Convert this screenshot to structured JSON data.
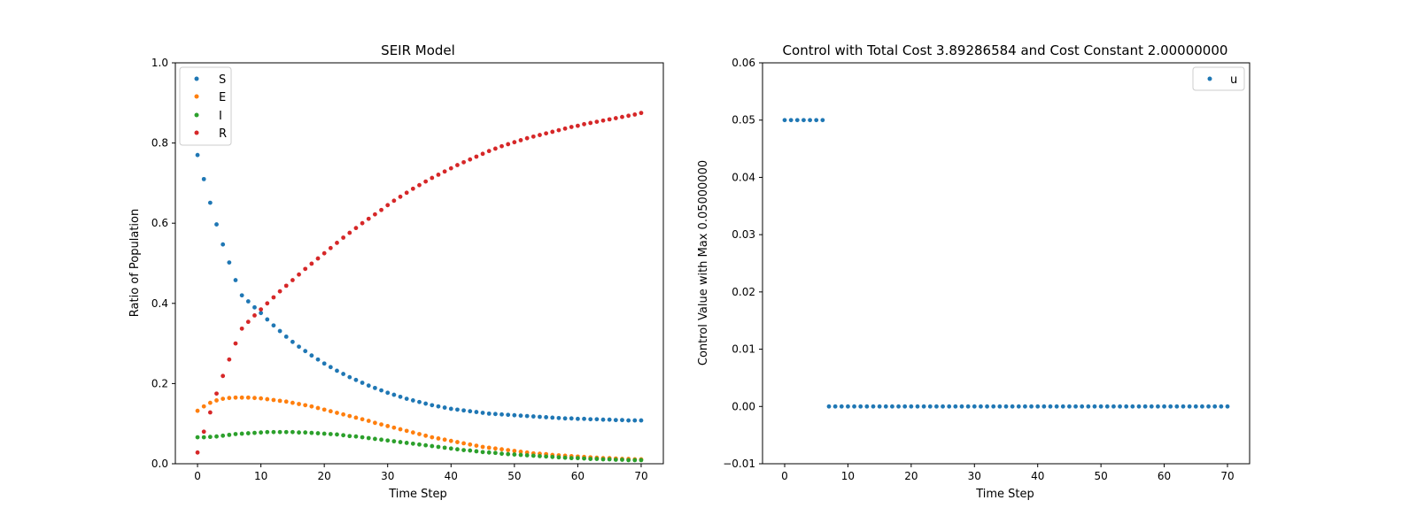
{
  "chart_data": [
    {
      "type": "scatter",
      "title": "SEIR Model",
      "xlabel": "Time Step",
      "ylabel": "Ratio of Population",
      "xlim": [
        -3.5,
        73.5
      ],
      "ylim": [
        0.0,
        1.0
      ],
      "xticks": [
        "0",
        "10",
        "20",
        "30",
        "40",
        "50",
        "60",
        "70"
      ],
      "yticks": [
        "0.0",
        "0.2",
        "0.4",
        "0.6",
        "0.8",
        "1.0"
      ],
      "grid": false,
      "legend": "top-left",
      "x": "0..70",
      "series": [
        {
          "name": "S",
          "color": "#1f77b4",
          "values": [
            0.77,
            0.71,
            0.651,
            0.597,
            0.547,
            0.502,
            0.458,
            0.42,
            0.405,
            0.39,
            0.376,
            0.36,
            0.345,
            0.331,
            0.317,
            0.304,
            0.292,
            0.281,
            0.27,
            0.26,
            0.25,
            0.241,
            0.232,
            0.224,
            0.216,
            0.209,
            0.202,
            0.195,
            0.189,
            0.183,
            0.177,
            0.172,
            0.167,
            0.162,
            0.158,
            0.154,
            0.15,
            0.146,
            0.143,
            0.14,
            0.137,
            0.135,
            0.133,
            0.131,
            0.129,
            0.127,
            0.125,
            0.124,
            0.123,
            0.122,
            0.121,
            0.12,
            0.119,
            0.118,
            0.117,
            0.116,
            0.115,
            0.114,
            0.113,
            0.113,
            0.112,
            0.112,
            0.111,
            0.111,
            0.11,
            0.11,
            0.109,
            0.109,
            0.108,
            0.108,
            0.108
          ]
        },
        {
          "name": "E",
          "color": "#ff7f0e",
          "values": [
            0.132,
            0.143,
            0.152,
            0.158,
            0.162,
            0.164,
            0.165,
            0.165,
            0.165,
            0.164,
            0.163,
            0.161,
            0.159,
            0.157,
            0.155,
            0.152,
            0.149,
            0.146,
            0.143,
            0.139,
            0.135,
            0.131,
            0.127,
            0.123,
            0.119,
            0.115,
            0.111,
            0.107,
            0.102,
            0.098,
            0.094,
            0.09,
            0.086,
            0.082,
            0.078,
            0.074,
            0.07,
            0.066,
            0.063,
            0.06,
            0.057,
            0.054,
            0.051,
            0.048,
            0.045,
            0.042,
            0.04,
            0.038,
            0.036,
            0.034,
            0.032,
            0.03,
            0.028,
            0.026,
            0.025,
            0.024,
            0.022,
            0.021,
            0.02,
            0.019,
            0.018,
            0.017,
            0.016,
            0.015,
            0.014,
            0.014,
            0.013,
            0.012,
            0.012,
            0.011,
            0.011
          ]
        },
        {
          "name": "I",
          "color": "#2ca02c",
          "values": [
            0.066,
            0.066,
            0.067,
            0.068,
            0.07,
            0.072,
            0.074,
            0.075,
            0.076,
            0.077,
            0.078,
            0.079,
            0.079,
            0.079,
            0.079,
            0.079,
            0.078,
            0.078,
            0.077,
            0.076,
            0.075,
            0.074,
            0.073,
            0.071,
            0.069,
            0.068,
            0.066,
            0.064,
            0.062,
            0.06,
            0.058,
            0.056,
            0.054,
            0.052,
            0.05,
            0.048,
            0.046,
            0.044,
            0.042,
            0.04,
            0.038,
            0.036,
            0.034,
            0.033,
            0.031,
            0.029,
            0.028,
            0.027,
            0.025,
            0.024,
            0.023,
            0.022,
            0.021,
            0.02,
            0.019,
            0.018,
            0.017,
            0.016,
            0.015,
            0.014,
            0.014,
            0.013,
            0.012,
            0.012,
            0.011,
            0.011,
            0.01,
            0.01,
            0.009,
            0.009,
            0.009
          ]
        },
        {
          "name": "R",
          "color": "#d62728",
          "values": [
            0.028,
            0.08,
            0.128,
            0.175,
            0.219,
            0.26,
            0.3,
            0.337,
            0.354,
            0.37,
            0.385,
            0.4,
            0.415,
            0.43,
            0.444,
            0.458,
            0.472,
            0.486,
            0.499,
            0.512,
            0.525,
            0.538,
            0.551,
            0.564,
            0.576,
            0.588,
            0.6,
            0.611,
            0.622,
            0.633,
            0.645,
            0.656,
            0.666,
            0.676,
            0.686,
            0.695,
            0.704,
            0.713,
            0.721,
            0.729,
            0.737,
            0.745,
            0.752,
            0.759,
            0.766,
            0.773,
            0.78,
            0.786,
            0.792,
            0.797,
            0.802,
            0.807,
            0.812,
            0.816,
            0.82,
            0.824,
            0.828,
            0.832,
            0.836,
            0.84,
            0.843,
            0.847,
            0.85,
            0.853,
            0.856,
            0.859,
            0.862,
            0.865,
            0.868,
            0.871,
            0.875
          ]
        }
      ]
    },
    {
      "type": "scatter",
      "title": "Control with Total Cost 3.89286584 and Cost Constant 2.00000000",
      "xlabel": "Time Step",
      "ylabel": "Control Value with Max 0.05000000",
      "xlim": [
        -3.5,
        73.5
      ],
      "ylim": [
        -0.01,
        0.06
      ],
      "xticks": [
        "0",
        "10",
        "20",
        "30",
        "40",
        "50",
        "60",
        "70"
      ],
      "yticks": [
        "−0.01",
        "0.00",
        "0.01",
        "0.02",
        "0.03",
        "0.04",
        "0.05",
        "0.06"
      ],
      "grid": false,
      "legend": "top-right",
      "x": "0..70",
      "series": [
        {
          "name": "u",
          "color": "#1f77b4",
          "values": [
            0.05,
            0.05,
            0.05,
            0.05,
            0.05,
            0.05,
            0.05,
            0,
            0,
            0,
            0,
            0,
            0,
            0,
            0,
            0,
            0,
            0,
            0,
            0,
            0,
            0,
            0,
            0,
            0,
            0,
            0,
            0,
            0,
            0,
            0,
            0,
            0,
            0,
            0,
            0,
            0,
            0,
            0,
            0,
            0,
            0,
            0,
            0,
            0,
            0,
            0,
            0,
            0,
            0,
            0,
            0,
            0,
            0,
            0,
            0,
            0,
            0,
            0,
            0,
            0,
            0,
            0,
            0,
            0,
            0,
            0,
            0,
            0,
            0,
            0
          ]
        }
      ]
    }
  ]
}
